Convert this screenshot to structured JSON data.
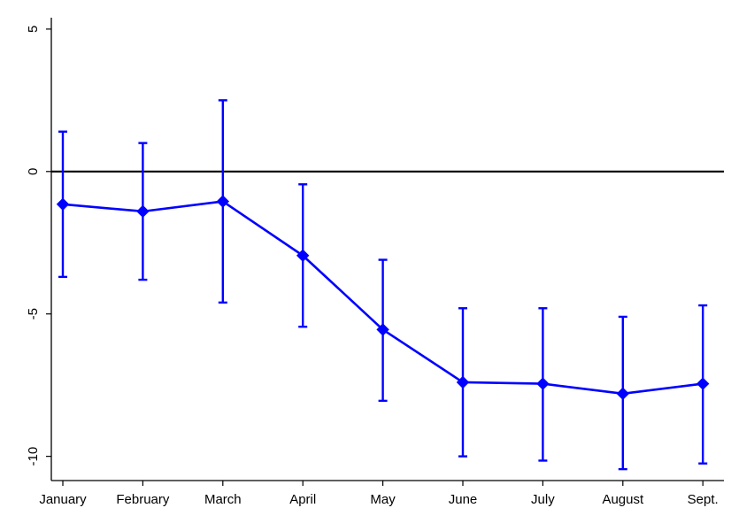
{
  "chart_data": {
    "type": "line",
    "categories": [
      "January",
      "February",
      "March",
      "April",
      "May",
      "June",
      "July",
      "August",
      "Sept."
    ],
    "series": [
      {
        "values": [
          -1.15,
          -1.4,
          -1.05,
          -2.95,
          -5.55,
          -7.4,
          -7.45,
          -7.8,
          -7.45
        ],
        "ci_low": [
          -3.7,
          -3.8,
          -4.6,
          -5.45,
          -8.05,
          -10.0,
          -10.15,
          -10.45,
          -10.25
        ],
        "ci_high": [
          1.4,
          1.0,
          2.5,
          -0.45,
          -3.1,
          -4.8,
          -4.8,
          -5.1,
          -4.7
        ],
        "color": "#0000ff",
        "marker": "diamond"
      }
    ],
    "reference_line": {
      "y": 0,
      "color": "#000000"
    },
    "y_ticks": [
      5,
      0,
      -5,
      -10
    ],
    "y_tick_labels": [
      "5",
      "0",
      "-5",
      "-10"
    ],
    "ylim": [
      -10.85,
      5.4
    ],
    "title": "",
    "xlabel": "",
    "ylabel": "",
    "grid": false,
    "legend": "none"
  }
}
